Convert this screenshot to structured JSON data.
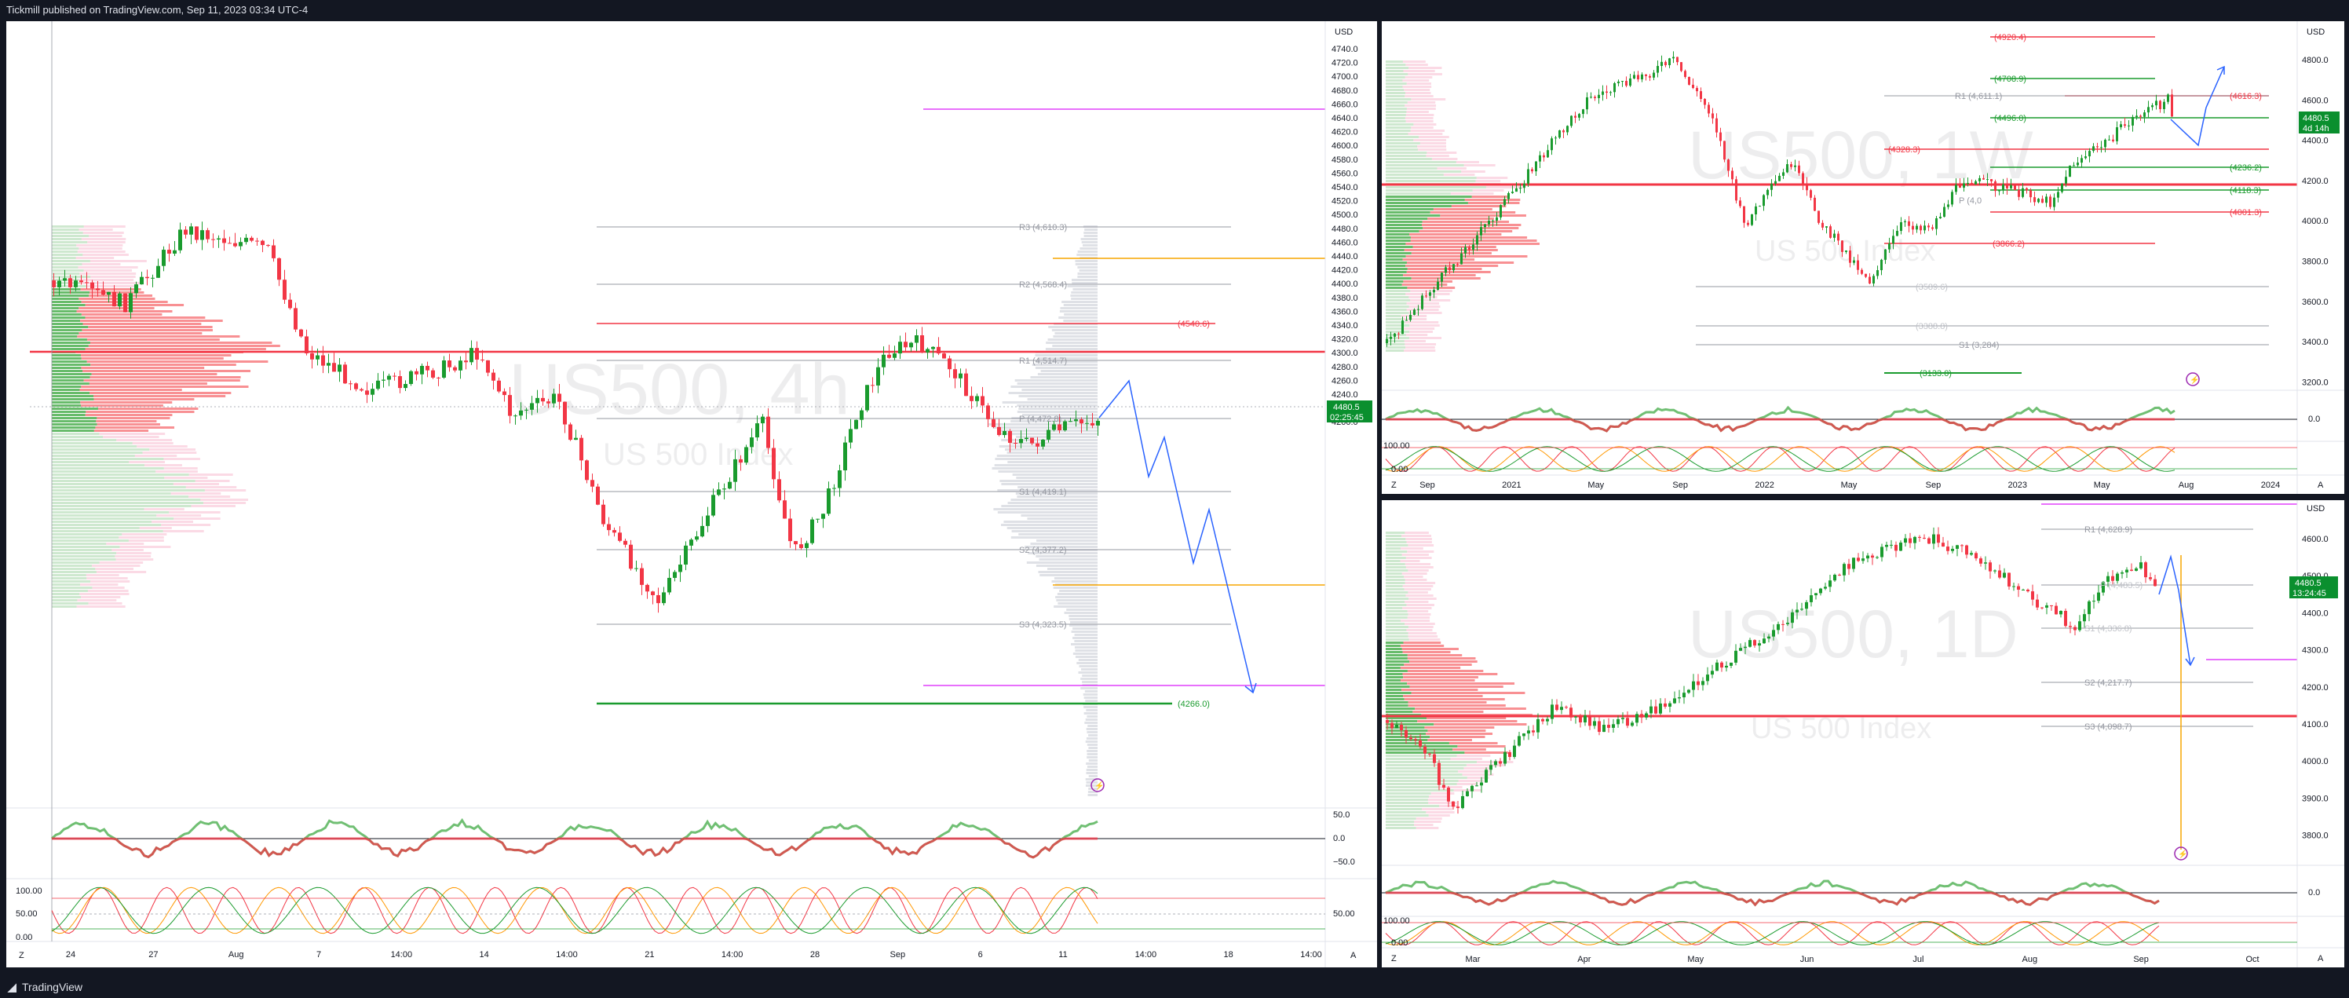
{
  "header": {
    "publisher": "Tickmill published on TradingView.com, Sep 11, 2023 03:34 UTC-4"
  },
  "footer": {
    "brand": "TradingView",
    "logo_icon": "tradingview-logo-icon"
  },
  "colors": {
    "up": "#089981",
    "upGreen": "#1a9b2e",
    "down": "#f23645",
    "blue": "#2962ff",
    "orange": "#f7a600",
    "magenta": "#e040fb",
    "price_bg": "#0a8f2e"
  },
  "charts": [
    {
      "id": "4h",
      "currency": "USD",
      "watermark_symbol": "US500, 4h",
      "watermark_name": "US 500 Index",
      "price_badge": {
        "value": "4480.5",
        "timer": "02:25:45"
      },
      "y_ticks": [
        "4740.0",
        "4720.0",
        "4700.0",
        "4680.0",
        "4660.0",
        "4640.0",
        "4620.0",
        "4600.0",
        "4580.0",
        "4560.0",
        "4540.0",
        "4520.0",
        "4500.0",
        "4480.0",
        "4460.0",
        "4440.0",
        "4420.0",
        "4400.0",
        "4380.0",
        "4360.0",
        "4340.0",
        "4320.0",
        "4300.0",
        "4280.0",
        "4260.0",
        "4240.0",
        "4220.0",
        "4200.0"
      ],
      "x_ticks": [
        "24",
        "27",
        "Aug",
        "7",
        "14:00",
        "14",
        "14:00",
        "21",
        "14:00",
        "28",
        "Sep",
        "6",
        "11",
        "14:00",
        "18",
        "14:00"
      ],
      "levels": [
        {
          "text": "R3 (4,610.3)",
          "kind": "pivot"
        },
        {
          "text": "R2 (4,568.4)",
          "kind": "pivot"
        },
        {
          "text": "(4540.6)",
          "kind": "down"
        },
        {
          "text": "R1 (4,514.7)",
          "kind": "pivot"
        },
        {
          "text": "P (4,472.8)",
          "kind": "pivot"
        },
        {
          "text": "S1 (4,419.1)",
          "kind": "pivot"
        },
        {
          "text": "S2 (4,377.2)",
          "kind": "pivot"
        },
        {
          "text": "S3 (4,323.5)",
          "kind": "pivot"
        },
        {
          "text": "(4266.0)",
          "kind": "up"
        }
      ],
      "osc_ticks": [
        "50.0",
        "0.0",
        "−50.0"
      ],
      "stoch_ticks": [
        "100.00",
        "50.00",
        "0.00"
      ],
      "corner_left": "Z",
      "corner_right": "A"
    },
    {
      "id": "1w",
      "currency": "USD",
      "watermark_symbol": "US500, 1W",
      "watermark_name": "US 500 Index",
      "price_badge": {
        "value": "4480.5",
        "timer": "4d 14h"
      },
      "y_ticks": [
        "4800.0",
        "4600.0",
        "4400.0",
        "4200.0",
        "4000.0",
        "3800.0",
        "3600.0",
        "3400.0",
        "3200.0"
      ],
      "x_ticks": [
        "Sep",
        "2021",
        "May",
        "Sep",
        "2022",
        "May",
        "Sep",
        "2023",
        "May",
        "Aug",
        "2024"
      ],
      "levels": [
        {
          "text": "(4920.4)",
          "kind": "down"
        },
        {
          "text": "(4708.9)",
          "kind": "up"
        },
        {
          "text": "R1 (4,611.1)",
          "kind": "pivot"
        },
        {
          "text": "(4616.3)",
          "kind": "down"
        },
        {
          "text": "(4496.0)",
          "kind": "up"
        },
        {
          "text": "(4328.3)",
          "kind": "down"
        },
        {
          "text": "(4236.2)",
          "kind": "up"
        },
        {
          "text": "(4118.3)",
          "kind": "up"
        },
        {
          "text": "P (4,0",
          "kind": "pivot"
        },
        {
          "text": "(4001.3)",
          "kind": "down"
        },
        {
          "text": "(3866.2)",
          "kind": "down"
        },
        {
          "text": "(3589.6)",
          "kind": "pivot"
        },
        {
          "text": "(3388.8)",
          "kind": "pivot"
        },
        {
          "text": "S1 (3,284)",
          "kind": "pivot"
        },
        {
          "text": "(3133.0)",
          "kind": "up"
        }
      ],
      "osc_ticks": [
        "0.0"
      ],
      "stoch_ticks": [
        "100.00",
        "0.00"
      ],
      "corner_left": "Z",
      "corner_right": "A"
    },
    {
      "id": "1d",
      "currency": "USD",
      "watermark_symbol": "US500, 1D",
      "watermark_name": "US 500 Index",
      "price_badge": {
        "value": "4480.5",
        "timer": "13:24:45"
      },
      "y_ticks": [
        "4600.0",
        "4500.0",
        "4400.0",
        "4300.0",
        "4200.0",
        "4100.0",
        "4000.0",
        "3900.0",
        "3800.0"
      ],
      "x_ticks": [
        "Mar",
        "Apr",
        "May",
        "Jun",
        "Jul",
        "Aug",
        "Sep",
        "Oct"
      ],
      "levels": [
        {
          "text": "R1 (4,628.9)",
          "kind": "pivot"
        },
        {
          "text": "P (4,483.5)",
          "kind": "pivot"
        },
        {
          "text": "S1 (4,336.8)",
          "kind": "pivot"
        },
        {
          "text": "S2 (4,217.7)",
          "kind": "pivot"
        },
        {
          "text": "S3 (4,098.7)",
          "kind": "pivot"
        }
      ],
      "osc_ticks": [
        "0.0"
      ],
      "stoch_ticks": [
        "100.00",
        "0.00"
      ],
      "corner_left": "Z",
      "corner_right": "A"
    }
  ]
}
